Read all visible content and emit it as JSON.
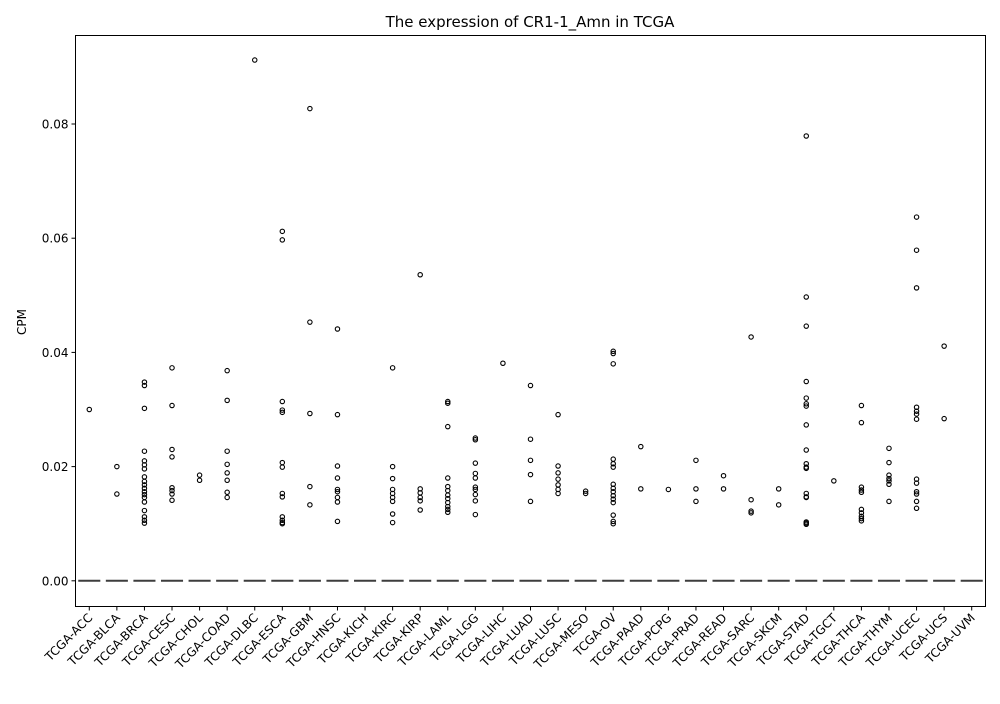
{
  "chart_data": {
    "type": "boxplot",
    "title": "The expression of CR1-1_Amn in TCGA",
    "xlabel": "",
    "ylabel": "CPM",
    "ylim": [
      -0.0045,
      0.0955
    ],
    "yticks": [
      "0.00",
      "0.02",
      "0.04",
      "0.06",
      "0.08"
    ],
    "ytick_values": [
      0,
      0.02,
      0.04,
      0.06,
      0.08
    ],
    "grid": false,
    "legend": "none",
    "median": 0,
    "categories": [
      "TCGA-ACC",
      "TCGA-BLCA",
      "TCGA-BRCA",
      "TCGA-CESC",
      "TCGA-CHOL",
      "TCGA-COAD",
      "TCGA-DLBC",
      "TCGA-ESCA",
      "TCGA-GBM",
      "TCGA-HNSC",
      "TCGA-KICH",
      "TCGA-KIRC",
      "TCGA-KIRP",
      "TCGA-LAML",
      "TCGA-LGG",
      "TCGA-LIHC",
      "TCGA-LUAD",
      "TCGA-LUSC",
      "TCGA-MESO",
      "TCGA-OV",
      "TCGA-PAAD",
      "TCGA-PCPG",
      "TCGA-PRAD",
      "TCGA-READ",
      "TCGA-SARC",
      "TCGA-SKCM",
      "TCGA-STAD",
      "TCGA-TGCT",
      "TCGA-THCA",
      "TCGA-THYM",
      "TCGA-UCEC",
      "TCGA-UCS",
      "TCGA-UVM"
    ],
    "outliers": [
      [
        0.03
      ],
      [
        0.02,
        0.0152
      ],
      [
        0.0348,
        0.0342,
        0.0302,
        0.0227,
        0.021,
        0.0203,
        0.0196,
        0.0182,
        0.0174,
        0.0168,
        0.0162,
        0.0156,
        0.0151,
        0.0146,
        0.0138,
        0.0123,
        0.0112,
        0.0106,
        0.0101
      ],
      [
        0.0373,
        0.0307,
        0.023,
        0.0217,
        0.0163,
        0.0158,
        0.0152,
        0.0141
      ],
      [
        0.0185,
        0.0176
      ],
      [
        0.0368,
        0.0316,
        0.0227,
        0.0204,
        0.0189,
        0.0176,
        0.0155,
        0.0146
      ],
      [
        0.0912
      ],
      [
        0.0612,
        0.0597,
        0.0314,
        0.0299,
        0.0295,
        0.0207,
        0.0199,
        0.0153,
        0.0147,
        0.0112,
        0.0106,
        0.0102,
        0.01
      ],
      [
        0.0827,
        0.0453,
        0.0293,
        0.0165,
        0.0133
      ],
      [
        0.0441,
        0.0291,
        0.0201,
        0.018,
        0.016,
        0.0156,
        0.0146,
        0.0138,
        0.0104
      ],
      [],
      [
        0.0373,
        0.02,
        0.0179,
        0.016,
        0.0153,
        0.0146,
        0.0139,
        0.0117,
        0.0102
      ],
      [
        0.0536,
        0.0161,
        0.0154,
        0.0146,
        0.014,
        0.0124
      ],
      [
        0.0314,
        0.0311,
        0.027,
        0.018,
        0.0165,
        0.0158,
        0.015,
        0.0144,
        0.0137,
        0.013,
        0.0125,
        0.012
      ],
      [
        0.025,
        0.0247,
        0.0206,
        0.0188,
        0.018,
        0.0164,
        0.016,
        0.0151,
        0.014,
        0.0116
      ],
      [
        0.0381
      ],
      [
        0.0342,
        0.0248,
        0.0211,
        0.0186,
        0.0139
      ],
      [
        0.0291,
        0.0201,
        0.0189,
        0.0178,
        0.0168,
        0.016,
        0.0153
      ],
      [
        0.0157,
        0.0153
      ],
      [
        0.0402,
        0.0398,
        0.038,
        0.0213,
        0.0205,
        0.0199,
        0.0169,
        0.0162,
        0.0156,
        0.0149,
        0.0143,
        0.0137,
        0.0115,
        0.0104,
        0.01
      ],
      [
        0.0235,
        0.0161
      ],
      [
        0.016
      ],
      [
        0.0211,
        0.0161,
        0.0139
      ],
      [
        0.0184,
        0.0161
      ],
      [
        0.0427,
        0.0142,
        0.0122,
        0.0119
      ],
      [
        0.0161,
        0.0133
      ],
      [
        0.0779,
        0.0497,
        0.0446,
        0.0349,
        0.032,
        0.031,
        0.0306,
        0.0273,
        0.0229,
        0.0205,
        0.0199,
        0.0197,
        0.0153,
        0.0147,
        0.0146,
        0.0103,
        0.0101,
        0.0099
      ],
      [
        0.0175
      ],
      [
        0.0307,
        0.0277,
        0.0164,
        0.0159,
        0.0155,
        0.0125,
        0.0119,
        0.0113,
        0.0109,
        0.0105
      ],
      [
        0.0232,
        0.0207,
        0.0185,
        0.0179,
        0.0175,
        0.0169,
        0.0139
      ],
      [
        0.0637,
        0.0579,
        0.0513,
        0.0304,
        0.0297,
        0.0292,
        0.0283,
        0.0178,
        0.0171,
        0.0156,
        0.0152,
        0.0139,
        0.0127
      ],
      [
        0.0411,
        0.0284
      ],
      []
    ]
  }
}
